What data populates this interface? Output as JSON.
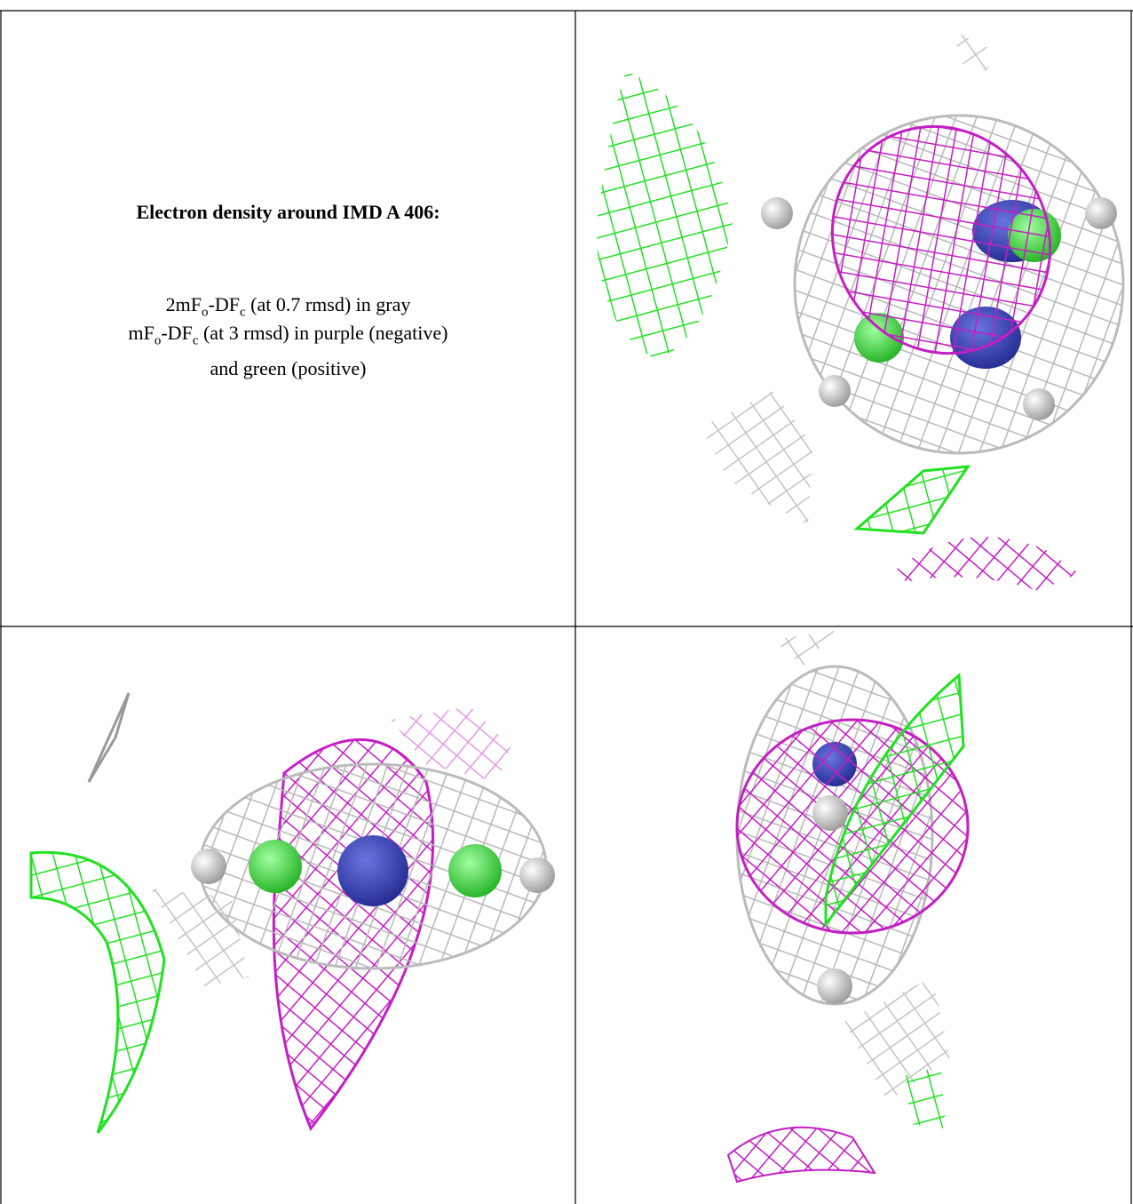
{
  "figure": {
    "title": "Electron density around IMD A 406:",
    "lines": [
      [
        {
          "text": "2mF"
        },
        {
          "sub": "o"
        },
        {
          "text": "-DF"
        },
        {
          "sub": "c"
        },
        {
          "text": " (at 0.7 rmsd) in gray"
        }
      ],
      [
        {
          "text": "mF"
        },
        {
          "sub": "o"
        },
        {
          "text": "-DF"
        },
        {
          "sub": "c"
        },
        {
          "text": " (at 3 rmsd) in purple (negative)"
        }
      ],
      [
        {
          "text": "and green (positive)"
        }
      ]
    ]
  }
}
